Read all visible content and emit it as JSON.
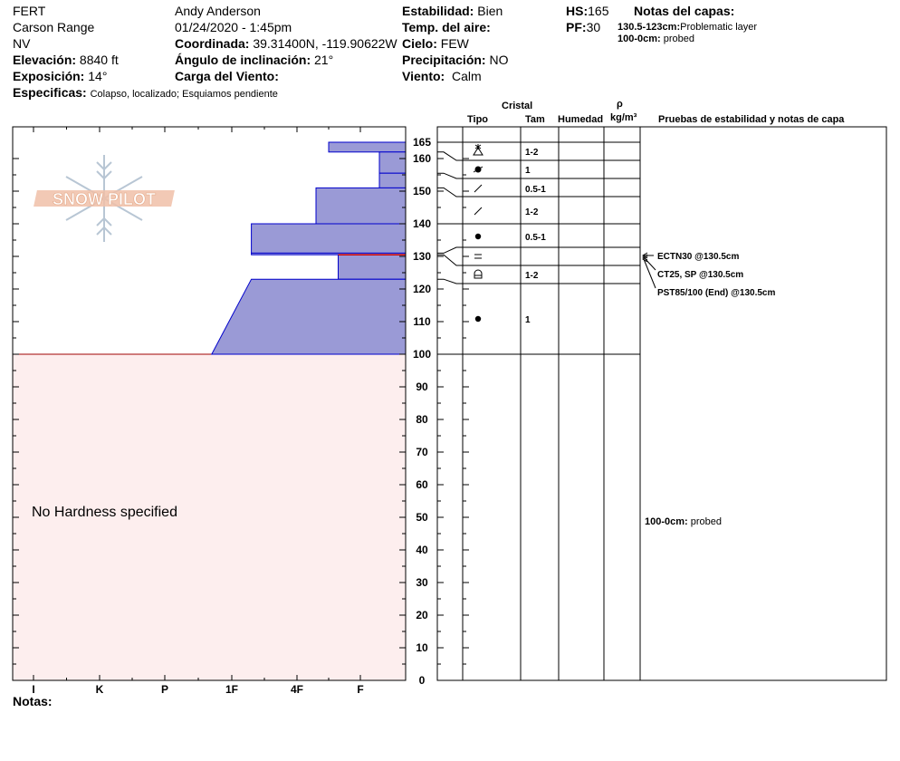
{
  "header": {
    "observer_code": "FERT",
    "range": "Carson Range",
    "state": "NV",
    "elevation_label": "Elevación:",
    "elevation_value": "8840 ft",
    "aspect_label": "Exposición:",
    "aspect_value": "14°",
    "specifics_label": "Especificas:",
    "specifics_value": "Colapso, localizado;  Esquiamos pendiente",
    "observer_name": "Andy Anderson",
    "datetime": "01/24/2020 - 1:45pm",
    "coord_label": "Coordinada:",
    "coord_value": "39.31400N, -119.90622W",
    "incline_label": "Ángulo de inclinación:",
    "incline_value": "21°",
    "wind_load_label": "Carga del Viento:",
    "stability_label": "Estabilidad:",
    "stability_value": "Bien",
    "air_temp_label": "Temp. del aire:",
    "sky_label": "Cielo:",
    "sky_value": "FEW",
    "precip_label": "Precipitación:",
    "precip_value": "NO",
    "wind_label": "Viento:",
    "wind_value": "Calm",
    "hs_label": "HS:",
    "hs_value": "165",
    "pf_label": "PF:",
    "pf_value": "30",
    "layer_notes_label": "Notas del capas:",
    "layer_note_1_range": "130.5-123cm:",
    "layer_note_1_text": "Problematic layer",
    "layer_note_2_range": "100-0cm:",
    "layer_note_2_text": "probed"
  },
  "column_headers": {
    "crystal": "Cristal",
    "type": "Tipo",
    "size": "Tam",
    "moisture": "Humedad",
    "rho": "ρ",
    "density_unit": "kg/m³",
    "tests": "Pruebas de estabilidad y notas de capa"
  },
  "logo_text": "SNOW PILOT",
  "no_hardness_text": "No Hardness specified",
  "notes_label": "Notas:",
  "colors": {
    "layer_fill": "#9a9ad6",
    "layer_stroke": "#0000cc",
    "probed_fill": "#fdeeee",
    "problem_line": "#cc0000"
  },
  "chart_data": {
    "type": "bar",
    "title": "",
    "xlabel": "",
    "ylabel": "",
    "hardness_scale": [
      "I",
      "K",
      "P",
      "1F",
      "4F",
      "F"
    ],
    "hardness_ticks": [
      {
        "label": "I",
        "value": 6
      },
      {
        "label": "K",
        "value": 5
      },
      {
        "label": "P",
        "value": 4
      },
      {
        "label": "1F",
        "value": 3
      },
      {
        "label": "4F",
        "value": 2
      },
      {
        "label": "F",
        "value": 1
      }
    ],
    "ylim": [
      0,
      165
    ],
    "y_tick_labels": [
      "0",
      "10",
      "20",
      "30",
      "40",
      "50",
      "60",
      "70",
      "80",
      "90",
      "100",
      "110",
      "120",
      "130",
      "140",
      "150",
      "160",
      "165"
    ],
    "layers": [
      {
        "top": 165,
        "bottom": 162,
        "hardness": 1.5,
        "type": "precip",
        "size": "1-2"
      },
      {
        "top": 162,
        "bottom": 155.5,
        "hardness": 0.7,
        "type": "rounded-faceted",
        "size": "1"
      },
      {
        "top": 155.5,
        "bottom": 151,
        "hardness": 0.7,
        "type": "decomposing",
        "size": "0.5-1"
      },
      {
        "top": 151,
        "bottom": 140,
        "hardness": 1.7,
        "type": "decomposing",
        "size": "1-2"
      },
      {
        "top": 140,
        "bottom": 131,
        "hardness": 2.7,
        "type": "rounded",
        "size": "0.5-1"
      },
      {
        "top": 131,
        "bottom": 130.5,
        "hardness": 2.7,
        "type": "surface-hoar",
        "size": ""
      },
      {
        "top": 130.5,
        "bottom": 123,
        "hardness": 1.35,
        "type": "depth-hoar",
        "size": "1-2"
      },
      {
        "top": 123,
        "bottom": 100,
        "hardness_top": 2.7,
        "hardness_bottom": 3.3,
        "type": "rounded",
        "size": "1"
      }
    ],
    "problem_layer_depth": 130.5,
    "probed_range": [
      0,
      100
    ],
    "stability_tests": [
      {
        "text": "ECTN30 @130.5cm",
        "depth": 130.5
      },
      {
        "text": "CT25, SP @130.5cm",
        "depth": 130.5
      },
      {
        "text": "PST85/100 (End) @130.5cm",
        "depth": 130.5
      }
    ],
    "probed_note": {
      "range": "100-0cm:",
      "text": "probed"
    }
  }
}
